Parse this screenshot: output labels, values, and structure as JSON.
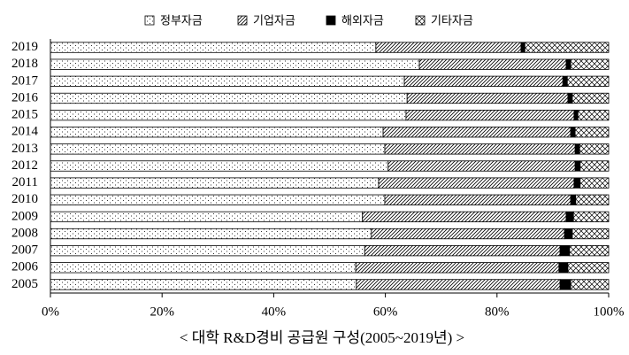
{
  "chart_data": {
    "type": "stacked-bar-horizontal",
    "title": "< 대학 R&D경비 공급원 구성(2005~2019년) >",
    "categories": [
      "2019",
      "2018",
      "2017",
      "2016",
      "2015",
      "2014",
      "2013",
      "2012",
      "2011",
      "2010",
      "2009",
      "2008",
      "2007",
      "2006",
      "2005"
    ],
    "series": [
      {
        "name": "정부자금",
        "color": "#000000",
        "pattern": "dots",
        "values": [
          58.3,
          66.1,
          63.4,
          63.9,
          63.7,
          59.6,
          59.9,
          60.5,
          58.8,
          59.9,
          55.9,
          57.5,
          56.3,
          54.7,
          54.8
        ]
      },
      {
        "name": "기업자금",
        "color": "#000000",
        "pattern": "hatch",
        "values": [
          26.0,
          26.3,
          28.4,
          28.8,
          30.1,
          33.6,
          34.1,
          33.5,
          35.0,
          33.3,
          36.5,
          34.6,
          35.0,
          36.4,
          36.5
        ]
      },
      {
        "name": "해외자금",
        "color": "#000000",
        "pattern": "solid",
        "values": [
          0.7,
          0.8,
          0.8,
          0.8,
          0.7,
          0.8,
          0.8,
          0.9,
          1.1,
          0.9,
          1.3,
          1.4,
          1.7,
          1.6,
          1.9
        ]
      },
      {
        "name": "기타자금",
        "color": "#000000",
        "pattern": "cross",
        "values": [
          15.0,
          6.8,
          7.4,
          6.5,
          5.5,
          6.0,
          5.2,
          5.1,
          5.1,
          5.9,
          6.3,
          6.5,
          7.0,
          7.3,
          6.8
        ]
      }
    ],
    "xlim": [
      0,
      100
    ],
    "xticks": [
      {
        "value": 0,
        "label": "0%"
      },
      {
        "value": 20,
        "label": "20%"
      },
      {
        "value": 40,
        "label": "40%"
      },
      {
        "value": 60,
        "label": "60%"
      },
      {
        "value": 80,
        "label": "80%"
      },
      {
        "value": 100,
        "label": "100%"
      }
    ],
    "legend": "top"
  }
}
